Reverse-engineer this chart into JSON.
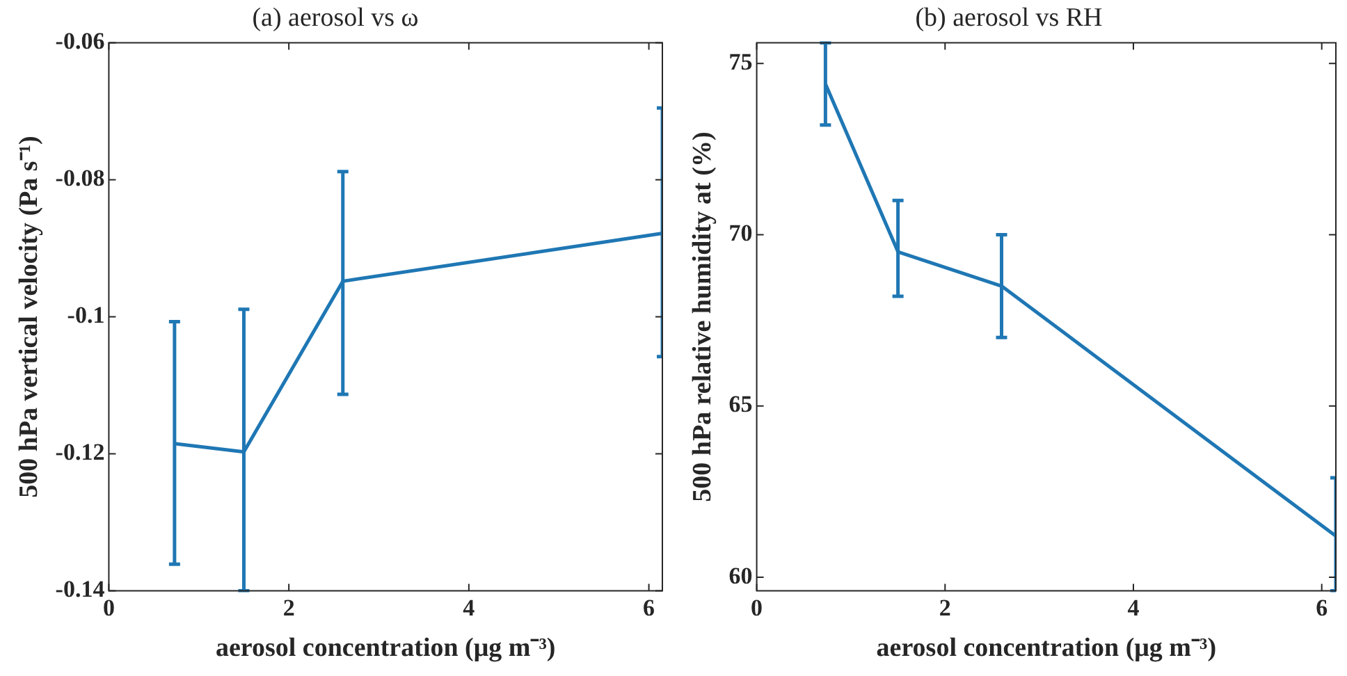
{
  "chart_data": [
    {
      "type": "line",
      "title": "(a) aerosol vs ω",
      "xlabel": "aerosol concentration (μg m⁻³)",
      "ylabel": "500 hPa vertical velocity (Pa s⁻¹)",
      "x": [
        0.73,
        1.5,
        2.6,
        6.15
      ],
      "series": [
        {
          "color": "#1f77b4",
          "values": [
            -0.1185,
            -0.1197,
            -0.0948,
            -0.0878
          ],
          "errors": [
            [
              -0.1361,
              -0.1007
            ],
            [
              -0.14,
              -0.0989
            ],
            [
              -0.1113,
              -0.0788
            ],
            [
              -0.1058,
              -0.0695
            ]
          ]
        }
      ],
      "xlim": [
        0,
        6.15
      ],
      "xticks": [
        0,
        2,
        4,
        6
      ],
      "ylim": [
        -0.14,
        -0.06
      ],
      "yticks": [
        -0.14,
        -0.12,
        -0.1,
        -0.08,
        -0.06
      ],
      "grid": false,
      "legend": false,
      "marker": "none",
      "line_style": "solid"
    },
    {
      "type": "line",
      "title": "(b) aerosol vs RH",
      "xlabel": "aerosol concentration (μg m⁻³)",
      "ylabel": "500 hPa relative humidity at (%)",
      "x": [
        0.73,
        1.5,
        2.6,
        6.15
      ],
      "series": [
        {
          "color": "#1f77b4",
          "values": [
            74.4,
            69.5,
            68.5,
            61.2
          ],
          "errors": [
            [
              73.2,
              75.6
            ],
            [
              68.2,
              71.0
            ],
            [
              67.0,
              70.0
            ],
            [
              59.6,
              62.9
            ]
          ]
        }
      ],
      "xlim": [
        0,
        6.15
      ],
      "xticks": [
        0,
        2,
        4,
        6
      ],
      "ylim": [
        59.6,
        75.6
      ],
      "yticks": [
        60,
        65,
        70,
        75
      ],
      "grid": false,
      "legend": false,
      "marker": "none",
      "line_style": "solid"
    }
  ]
}
